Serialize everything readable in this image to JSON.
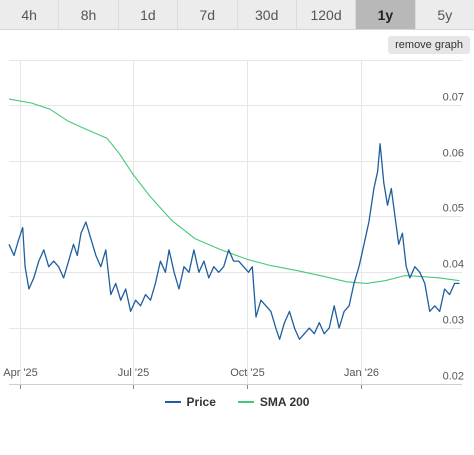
{
  "tabs": [
    {
      "label": "4h",
      "active": false
    },
    {
      "label": "8h",
      "active": false
    },
    {
      "label": "1d",
      "active": false
    },
    {
      "label": "7d",
      "active": false
    },
    {
      "label": "30d",
      "active": false
    },
    {
      "label": "120d",
      "active": false
    },
    {
      "label": "1y",
      "active": true
    },
    {
      "label": "5y",
      "active": false
    }
  ],
  "remove_button_label": "remove graph",
  "chart_data": {
    "type": "line",
    "x_tick_labels": [
      "Apr '25",
      "Jul '25",
      "Oct '25",
      "Jan '26"
    ],
    "x_ticks": [
      "2025-04-01",
      "2025-07-01",
      "2025-10-01",
      "2026-01-01"
    ],
    "x_range": [
      "2025-03-23",
      "2026-03-23"
    ],
    "y_ticks": [
      0.02,
      0.03,
      0.04,
      0.05,
      0.06,
      0.07
    ],
    "ylim": [
      0.02,
      0.078
    ],
    "grid": true,
    "legend_position": "bottom",
    "series": [
      {
        "name": "Price",
        "color": "#1f5f9e",
        "points": [
          [
            "2025-03-23",
            0.045
          ],
          [
            "2025-03-27",
            0.043
          ],
          [
            "2025-03-31",
            0.046
          ],
          [
            "2025-04-03",
            0.048
          ],
          [
            "2025-04-05",
            0.041
          ],
          [
            "2025-04-08",
            0.037
          ],
          [
            "2025-04-12",
            0.039
          ],
          [
            "2025-04-16",
            0.042
          ],
          [
            "2025-04-20",
            0.044
          ],
          [
            "2025-04-24",
            0.041
          ],
          [
            "2025-04-28",
            0.042
          ],
          [
            "2025-05-02",
            0.041
          ],
          [
            "2025-05-06",
            0.039
          ],
          [
            "2025-05-10",
            0.042
          ],
          [
            "2025-05-14",
            0.045
          ],
          [
            "2025-05-17",
            0.043
          ],
          [
            "2025-05-20",
            0.047
          ],
          [
            "2025-05-24",
            0.049
          ],
          [
            "2025-05-28",
            0.046
          ],
          [
            "2025-06-01",
            0.043
          ],
          [
            "2025-06-05",
            0.041
          ],
          [
            "2025-06-09",
            0.044
          ],
          [
            "2025-06-13",
            0.036
          ],
          [
            "2025-06-17",
            0.038
          ],
          [
            "2025-06-21",
            0.035
          ],
          [
            "2025-06-25",
            0.037
          ],
          [
            "2025-06-29",
            0.033
          ],
          [
            "2025-07-03",
            0.035
          ],
          [
            "2025-07-07",
            0.034
          ],
          [
            "2025-07-11",
            0.036
          ],
          [
            "2025-07-15",
            0.035
          ],
          [
            "2025-07-19",
            0.038
          ],
          [
            "2025-07-23",
            0.042
          ],
          [
            "2025-07-27",
            0.04
          ],
          [
            "2025-07-30",
            0.044
          ],
          [
            "2025-08-03",
            0.04
          ],
          [
            "2025-08-07",
            0.037
          ],
          [
            "2025-08-11",
            0.041
          ],
          [
            "2025-08-15",
            0.04
          ],
          [
            "2025-08-19",
            0.044
          ],
          [
            "2025-08-23",
            0.04
          ],
          [
            "2025-08-27",
            0.042
          ],
          [
            "2025-08-31",
            0.039
          ],
          [
            "2025-09-04",
            0.041
          ],
          [
            "2025-09-08",
            0.04
          ],
          [
            "2025-09-12",
            0.041
          ],
          [
            "2025-09-16",
            0.044
          ],
          [
            "2025-09-20",
            0.042
          ],
          [
            "2025-09-24",
            0.042
          ],
          [
            "2025-09-28",
            0.041
          ],
          [
            "2025-10-02",
            0.04
          ],
          [
            "2025-10-05",
            0.041
          ],
          [
            "2025-10-08",
            0.032
          ],
          [
            "2025-10-12",
            0.035
          ],
          [
            "2025-10-16",
            0.034
          ],
          [
            "2025-10-20",
            0.033
          ],
          [
            "2025-10-24",
            0.03
          ],
          [
            "2025-10-27",
            0.028
          ],
          [
            "2025-10-31",
            0.031
          ],
          [
            "2025-11-04",
            0.033
          ],
          [
            "2025-11-08",
            0.03
          ],
          [
            "2025-11-12",
            0.028
          ],
          [
            "2025-11-16",
            0.029
          ],
          [
            "2025-11-20",
            0.03
          ],
          [
            "2025-11-24",
            0.029
          ],
          [
            "2025-11-28",
            0.031
          ],
          [
            "2025-12-02",
            0.029
          ],
          [
            "2025-12-06",
            0.03
          ],
          [
            "2025-12-10",
            0.034
          ],
          [
            "2025-12-14",
            0.03
          ],
          [
            "2025-12-18",
            0.033
          ],
          [
            "2025-12-22",
            0.034
          ],
          [
            "2025-12-26",
            0.038
          ],
          [
            "2025-12-30",
            0.041
          ],
          [
            "2026-01-03",
            0.045
          ],
          [
            "2026-01-07",
            0.049
          ],
          [
            "2026-01-11",
            0.055
          ],
          [
            "2026-01-14",
            0.058
          ],
          [
            "2026-01-16",
            0.063
          ],
          [
            "2026-01-19",
            0.056
          ],
          [
            "2026-01-22",
            0.052
          ],
          [
            "2026-01-25",
            0.055
          ],
          [
            "2026-01-28",
            0.05
          ],
          [
            "2026-01-31",
            0.045
          ],
          [
            "2026-02-03",
            0.047
          ],
          [
            "2026-02-06",
            0.041
          ],
          [
            "2026-02-09",
            0.039
          ],
          [
            "2026-02-13",
            0.041
          ],
          [
            "2026-02-17",
            0.04
          ],
          [
            "2026-02-21",
            0.038
          ],
          [
            "2026-02-25",
            0.033
          ],
          [
            "2026-03-01",
            0.034
          ],
          [
            "2026-03-05",
            0.033
          ],
          [
            "2026-03-09",
            0.037
          ],
          [
            "2026-03-13",
            0.036
          ],
          [
            "2026-03-17",
            0.038
          ],
          [
            "2026-03-21",
            0.038
          ]
        ]
      },
      {
        "name": "SMA 200",
        "color": "#46c87a",
        "points": [
          [
            "2025-03-23",
            0.071
          ],
          [
            "2025-04-10",
            0.0703
          ],
          [
            "2025-04-25",
            0.0692
          ],
          [
            "2025-05-10",
            0.067
          ],
          [
            "2025-05-25",
            0.0655
          ],
          [
            "2025-06-10",
            0.064
          ],
          [
            "2025-06-20",
            0.0612
          ],
          [
            "2025-07-01",
            0.0575
          ],
          [
            "2025-07-15",
            0.0535
          ],
          [
            "2025-08-01",
            0.0493
          ],
          [
            "2025-08-20",
            0.046
          ],
          [
            "2025-09-10",
            0.044
          ],
          [
            "2025-10-01",
            0.0423
          ],
          [
            "2025-10-20",
            0.0412
          ],
          [
            "2025-11-10",
            0.0403
          ],
          [
            "2025-12-01",
            0.0393
          ],
          [
            "2025-12-20",
            0.0383
          ],
          [
            "2026-01-05",
            0.038
          ],
          [
            "2026-01-20",
            0.0385
          ],
          [
            "2026-02-05",
            0.0394
          ],
          [
            "2026-02-20",
            0.0392
          ],
          [
            "2026-03-05",
            0.039
          ],
          [
            "2026-03-21",
            0.0385
          ]
        ]
      }
    ]
  }
}
